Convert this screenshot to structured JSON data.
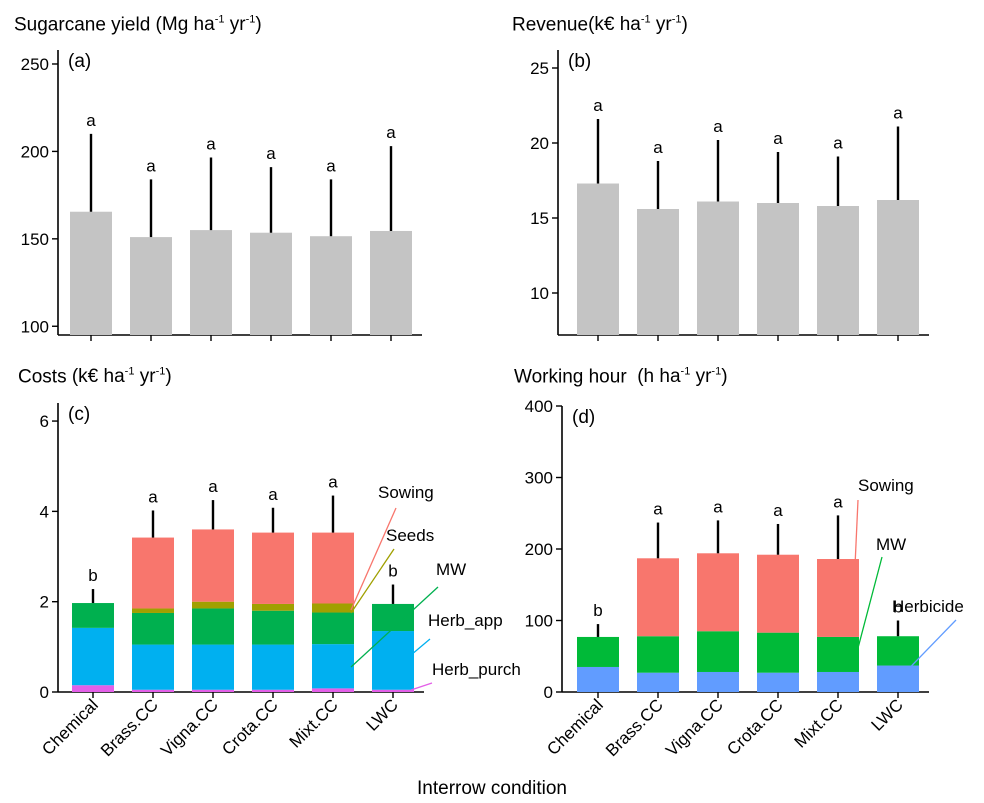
{
  "figure": {
    "xlabel": "Interrow condition"
  },
  "chart_data": [
    {
      "id": "a",
      "type": "bar",
      "panel_label": "(a)",
      "title_main": "Sugarcane yield",
      "title_unit_open": "(Mg ha",
      "title_unit_sup1": "-1",
      "title_unit_mid": " yr",
      "title_unit_sup2": "-1",
      "title_unit_close": ")",
      "categories": [
        "Chemical",
        "Brass.CC",
        "Vigna.CC",
        "Crota.CC",
        "Mixt.CC",
        "LWC"
      ],
      "values": [
        165.5,
        151,
        155,
        153.5,
        151.5,
        154.5
      ],
      "error_upper": [
        210,
        184,
        196.5,
        191,
        184,
        203
      ],
      "letters": [
        "a",
        "a",
        "a",
        "a",
        "a",
        "a"
      ],
      "ylim": [
        95,
        258
      ],
      "yticks": [
        100,
        150,
        200,
        250
      ],
      "bar_color": "#c4c4c4"
    },
    {
      "id": "b",
      "type": "bar",
      "panel_label": "(b)",
      "title_main": "Revenue",
      "title_unit_open": "(k€ ha",
      "title_unit_sup1": "-1",
      "title_unit_mid": " yr",
      "title_unit_sup2": "-1",
      "title_unit_close": ")",
      "categories": [
        "Chemical",
        "Brass.CC",
        "Vigna.CC",
        "Crota.CC",
        "Mixt.CC",
        "LWC"
      ],
      "values": [
        17.3,
        15.6,
        16.1,
        16.0,
        15.8,
        16.2
      ],
      "error_upper": [
        21.6,
        18.8,
        20.2,
        19.4,
        19.1,
        21.1
      ],
      "letters": [
        "a",
        "a",
        "a",
        "a",
        "a",
        "a"
      ],
      "ylim": [
        7.2,
        26.2
      ],
      "yticks": [
        10,
        15,
        20,
        25
      ],
      "bar_color": "#c4c4c4"
    },
    {
      "id": "c",
      "type": "stacked_bar",
      "panel_label": "(c)",
      "title_main": "Costs",
      "title_unit_open": "(k€ ha",
      "title_unit_sup1": "-1",
      "title_unit_mid": " yr",
      "title_unit_sup2": "-1",
      "title_unit_close": ")",
      "categories": [
        "Chemical",
        "Brass.CC",
        "Vigna.CC",
        "Crota.CC",
        "Mixt.CC",
        "LWC"
      ],
      "series": [
        {
          "name": "Herb_purch",
          "color": "#e35fe8",
          "values": [
            0.15,
            0.05,
            0.05,
            0.05,
            0.08,
            0.05
          ]
        },
        {
          "name": "Herb_app",
          "color": "#00b0f0",
          "values": [
            1.27,
            1.0,
            1.0,
            1.0,
            0.98,
            1.3
          ]
        },
        {
          "name": "MW",
          "color": "#00b04f",
          "values": [
            0.55,
            0.7,
            0.8,
            0.75,
            0.7,
            0.6
          ]
        },
        {
          "name": "Seeds",
          "color": "#a0a000",
          "values": [
            0,
            0.1,
            0.15,
            0.15,
            0.2,
            0
          ]
        },
        {
          "name": "Sowing",
          "color": "#f8766d",
          "values": [
            0,
            1.57,
            1.6,
            1.58,
            1.57,
            0
          ]
        }
      ],
      "totals": [
        1.97,
        3.42,
        3.6,
        3.53,
        3.53,
        1.95
      ],
      "error_upper": [
        2.28,
        4.02,
        4.25,
        4.08,
        4.35,
        2.38
      ],
      "letters": [
        "b",
        "a",
        "a",
        "a",
        "a",
        "b"
      ],
      "ylim": [
        0,
        6.4
      ],
      "yticks": [
        0,
        2,
        4,
        6
      ],
      "series_labels": [
        "Sowing",
        "Seeds",
        "MW",
        "Herb_app",
        "Herb_purch"
      ]
    },
    {
      "id": "d",
      "type": "stacked_bar",
      "panel_label": "(d)",
      "title_main": "Working hour",
      "title_unit_open": "(h ha",
      "title_unit_sup1": "-1",
      "title_unit_mid": " yr",
      "title_unit_sup2": "-1",
      "title_unit_close": ")",
      "categories": [
        "Chemical",
        "Brass.CC",
        "Vigna.CC",
        "Crota.CC",
        "Mixt.CC",
        "LWC"
      ],
      "series": [
        {
          "name": "Herbicide",
          "color": "#619cff",
          "values": [
            35,
            27,
            28,
            27,
            28,
            37
          ]
        },
        {
          "name": "MW",
          "color": "#00ba38",
          "values": [
            42,
            51,
            57,
            56,
            49,
            41
          ]
        },
        {
          "name": "Sowing",
          "color": "#f8766d",
          "values": [
            0,
            109,
            109,
            109,
            109,
            0
          ]
        }
      ],
      "totals": [
        77,
        187,
        194,
        192,
        186,
        78
      ],
      "error_upper": [
        95,
        237,
        240,
        235,
        247,
        100
      ],
      "letters": [
        "b",
        "a",
        "a",
        "a",
        "a",
        "b"
      ],
      "ylim": [
        0,
        400
      ],
      "yticks": [
        0,
        100,
        200,
        300,
        400
      ],
      "series_labels": [
        "Sowing",
        "MW",
        "Herbicide"
      ]
    }
  ]
}
